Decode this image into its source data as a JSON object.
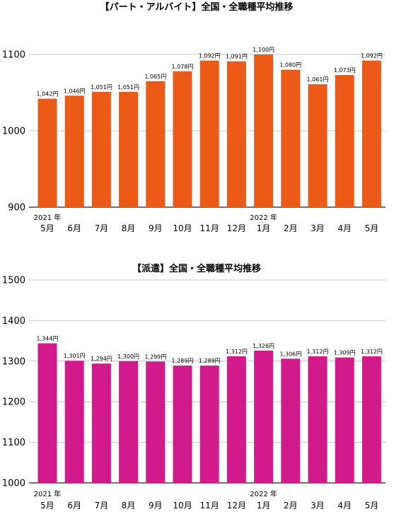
{
  "chart_data": [
    {
      "type": "bar",
      "title": "【パート・アルバイト】全国・全職種平均推移",
      "categories": [
        "5月",
        "6月",
        "7月",
        "8月",
        "9月",
        "10月",
        "11月",
        "12月",
        "1月",
        "2月",
        "3月",
        "4月",
        "5月"
      ],
      "year_markers": [
        {
          "index": 0,
          "label": "2021 年"
        },
        {
          "index": 8,
          "label": "2022 年"
        }
      ],
      "values": [
        1042,
        1046,
        1051,
        1051,
        1065,
        1078,
        1092,
        1091,
        1100,
        1080,
        1061,
        1073,
        1092
      ],
      "data_labels": [
        "1,042円",
        "1,046円",
        "1,051円",
        "1,051円",
        "1,065円",
        "1,078円",
        "1,092円",
        "1,091円",
        "1,100円",
        "1,080円",
        "1,061円",
        "1,073円",
        "1,092円"
      ],
      "ylim": [
        900,
        1100
      ],
      "yticks": [
        900,
        1000,
        1100
      ],
      "grid": true,
      "bar_color": "#eb5a16"
    },
    {
      "type": "bar",
      "title": "【派遣】全国・全職種平均推移",
      "categories": [
        "5月",
        "6月",
        "7月",
        "8月",
        "9月",
        "10月",
        "11月",
        "12月",
        "1月",
        "2月",
        "3月",
        "4月",
        "5月"
      ],
      "year_markers": [
        {
          "index": 0,
          "label": "2021 年"
        },
        {
          "index": 8,
          "label": "2022 年"
        }
      ],
      "values": [
        1344,
        1301,
        1294,
        1300,
        1299,
        1289,
        1289,
        1312,
        1326,
        1306,
        1312,
        1309,
        1312
      ],
      "data_labels": [
        "1,344円",
        "1,301円",
        "1,294円",
        "1,300円",
        "1,299円",
        "1,289円",
        "1,289円",
        "1,312円",
        "1,326円",
        "1,306円",
        "1,312円",
        "1,309円",
        "1,312円"
      ],
      "ylim": [
        1000,
        1500
      ],
      "yticks": [
        1000,
        1100,
        1200,
        1300,
        1400,
        1500
      ],
      "grid": true,
      "bar_color": "#d21b8a"
    }
  ]
}
